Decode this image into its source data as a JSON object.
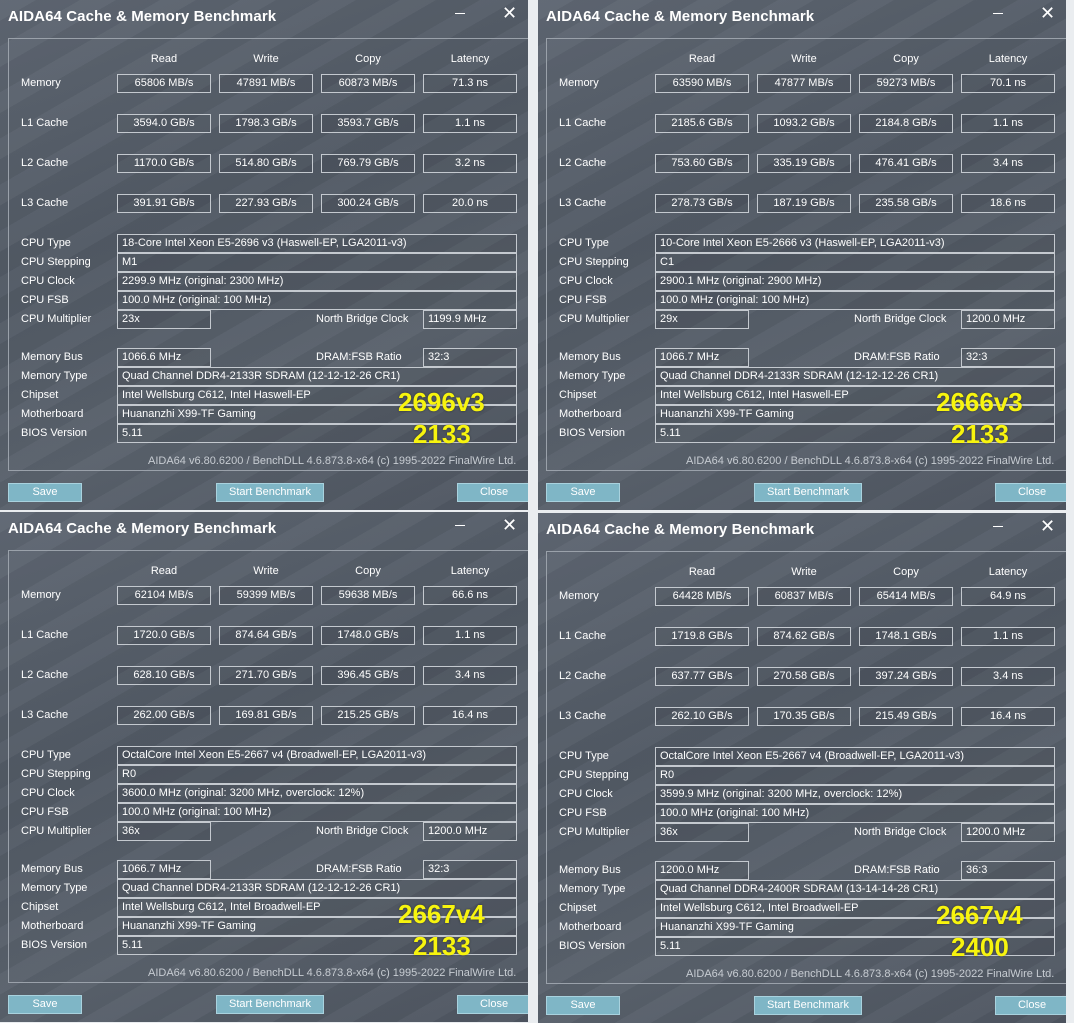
{
  "headers": [
    "Read",
    "Write",
    "Copy",
    "Latency"
  ],
  "row_labels": [
    "Memory",
    "L1 Cache",
    "L2 Cache",
    "L3 Cache"
  ],
  "info_labels": {
    "cpu_type": "CPU Type",
    "cpu_stepping": "CPU Stepping",
    "cpu_clock": "CPU Clock",
    "cpu_fsb": "CPU FSB",
    "cpu_multiplier": "CPU Multiplier",
    "nb_clock": "North Bridge Clock",
    "memory_bus": "Memory Bus",
    "dram_ratio": "DRAM:FSB Ratio",
    "memory_type": "Memory Type",
    "chipset": "Chipset",
    "motherboard": "Motherboard",
    "bios": "BIOS Version"
  },
  "buttons": {
    "save": "Save",
    "start": "Start Benchmark",
    "close": "Close"
  },
  "windows": [
    {
      "title": "AIDA64 Cache & Memory Benchmark",
      "rows": [
        [
          "65806 MB/s",
          "47891 MB/s",
          "60873 MB/s",
          "71.3 ns"
        ],
        [
          "3594.0 GB/s",
          "1798.3 GB/s",
          "3593.7 GB/s",
          "1.1 ns"
        ],
        [
          "1170.0 GB/s",
          "514.80 GB/s",
          "769.79 GB/s",
          "3.2 ns"
        ],
        [
          "391.91 GB/s",
          "227.93 GB/s",
          "300.24 GB/s",
          "20.0 ns"
        ]
      ],
      "cpu_type": "18-Core Intel Xeon E5-2696 v3  (Haswell-EP, LGA2011-v3)",
      "cpu_stepping": "M1",
      "cpu_clock": "2299.9 MHz  (original: 2300 MHz)",
      "cpu_fsb": "100.0 MHz  (original: 100 MHz)",
      "cpu_multiplier": "23x",
      "nb_clock": "1199.9 MHz",
      "memory_bus": "1066.6 MHz",
      "dram_ratio": "32:3",
      "memory_type": "Quad Channel DDR4-2133R SDRAM  (12-12-12-26 CR1)",
      "chipset": "Intel Wellsburg C612, Intel Haswell-EP",
      "motherboard": "Huananzhi X99-TF Gaming",
      "bios": "5.11",
      "footer": "AIDA64 v6.80.6200 / BenchDLL 4.6.873.8-x64  (c) 1995-2022 FinalWire Ltd.",
      "overlay_cpu": "2696v3",
      "overlay_mem": "2133"
    },
    {
      "title": "AIDA64 Cache & Memory Benchmark",
      "rows": [
        [
          "63590 MB/s",
          "47877 MB/s",
          "59273 MB/s",
          "70.1 ns"
        ],
        [
          "2185.6 GB/s",
          "1093.2 GB/s",
          "2184.8 GB/s",
          "1.1 ns"
        ],
        [
          "753.60 GB/s",
          "335.19 GB/s",
          "476.41 GB/s",
          "3.4 ns"
        ],
        [
          "278.73 GB/s",
          "187.19 GB/s",
          "235.58 GB/s",
          "18.6 ns"
        ]
      ],
      "cpu_type": "10-Core Intel Xeon E5-2666 v3  (Haswell-EP, LGA2011-v3)",
      "cpu_stepping": "C1",
      "cpu_clock": "2900.1 MHz  (original: 2900 MHz)",
      "cpu_fsb": "100.0 MHz  (original: 100 MHz)",
      "cpu_multiplier": "29x",
      "nb_clock": "1200.0 MHz",
      "memory_bus": "1066.7 MHz",
      "dram_ratio": "32:3",
      "memory_type": "Quad Channel DDR4-2133R SDRAM  (12-12-12-26 CR1)",
      "chipset": "Intel Wellsburg C612, Intel Haswell-EP",
      "motherboard": "Huananzhi X99-TF Gaming",
      "bios": "5.11",
      "footer": "AIDA64 v6.80.6200 / BenchDLL 4.6.873.8-x64  (c) 1995-2022 FinalWire Ltd.",
      "overlay_cpu": "2666v3",
      "overlay_mem": "2133"
    },
    {
      "title": "AIDA64 Cache & Memory Benchmark",
      "rows": [
        [
          "62104 MB/s",
          "59399 MB/s",
          "59638 MB/s",
          "66.6 ns"
        ],
        [
          "1720.0 GB/s",
          "874.64 GB/s",
          "1748.0 GB/s",
          "1.1 ns"
        ],
        [
          "628.10 GB/s",
          "271.70 GB/s",
          "396.45 GB/s",
          "3.4 ns"
        ],
        [
          "262.00 GB/s",
          "169.81 GB/s",
          "215.25 GB/s",
          "16.4 ns"
        ]
      ],
      "cpu_type": "OctalCore Intel Xeon E5-2667 v4  (Broadwell-EP, LGA2011-v3)",
      "cpu_stepping": "R0",
      "cpu_clock": "3600.0 MHz  (original: 3200 MHz, overclock: 12%)",
      "cpu_fsb": "100.0 MHz  (original: 100 MHz)",
      "cpu_multiplier": "36x",
      "nb_clock": "1200.0 MHz",
      "memory_bus": "1066.7 MHz",
      "dram_ratio": "32:3",
      "memory_type": "Quad Channel DDR4-2133R SDRAM  (12-12-12-26 CR1)",
      "chipset": "Intel Wellsburg C612, Intel Broadwell-EP",
      "motherboard": "Huananzhi X99-TF Gaming",
      "bios": "5.11",
      "footer": "AIDA64 v6.80.6200 / BenchDLL 4.6.873.8-x64  (c) 1995-2022 FinalWire Ltd.",
      "overlay_cpu": "2667v4",
      "overlay_mem": "2133"
    },
    {
      "title": "AIDA64 Cache & Memory Benchmark",
      "rows": [
        [
          "64428 MB/s",
          "60837 MB/s",
          "65414 MB/s",
          "64.9 ns"
        ],
        [
          "1719.8 GB/s",
          "874.62 GB/s",
          "1748.1 GB/s",
          "1.1 ns"
        ],
        [
          "637.77 GB/s",
          "270.58 GB/s",
          "397.24 GB/s",
          "3.4 ns"
        ],
        [
          "262.10 GB/s",
          "170.35 GB/s",
          "215.49 GB/s",
          "16.4 ns"
        ]
      ],
      "cpu_type": "OctalCore Intel Xeon E5-2667 v4  (Broadwell-EP, LGA2011-v3)",
      "cpu_stepping": "R0",
      "cpu_clock": "3599.9 MHz  (original: 3200 MHz, overclock: 12%)",
      "cpu_fsb": "100.0 MHz  (original: 100 MHz)",
      "cpu_multiplier": "36x",
      "nb_clock": "1200.0 MHz",
      "memory_bus": "1200.0 MHz",
      "dram_ratio": "36:3",
      "memory_type": "Quad Channel DDR4-2400R SDRAM  (13-14-14-28 CR1)",
      "chipset": "Intel Wellsburg C612, Intel Broadwell-EP",
      "motherboard": "Huananzhi X99-TF Gaming",
      "bios": "5.11",
      "footer": "AIDA64 v6.80.6200 / BenchDLL 4.6.873.8-x64  (c) 1995-2022 FinalWire Ltd.",
      "overlay_cpu": "2667v4",
      "overlay_mem": "2400"
    }
  ]
}
